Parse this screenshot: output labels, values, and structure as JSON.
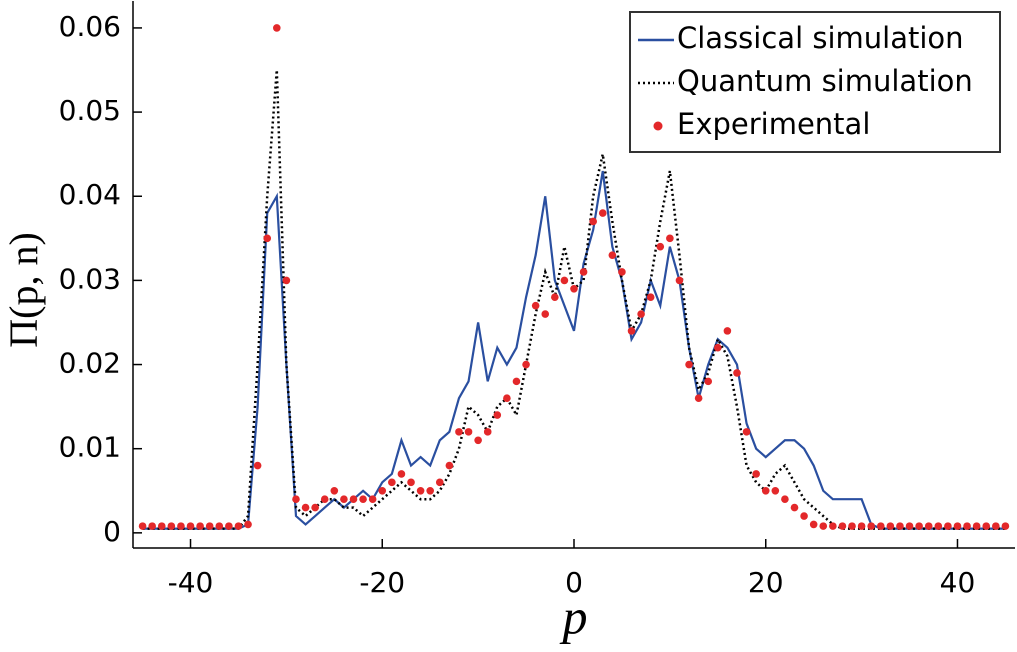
{
  "chart_data": {
    "type": "line",
    "xlabel": "p",
    "ylabel": "Π(p, n)",
    "xlim": [
      -46,
      46
    ],
    "ylim": [
      -0.0018,
      0.0632
    ],
    "xticks": [
      -40,
      -20,
      0,
      20,
      40
    ],
    "yticks": [
      0,
      0.01,
      0.02,
      0.03,
      0.04,
      0.05,
      0.06
    ],
    "legend": "upper right",
    "x": [
      -45,
      -44,
      -43,
      -42,
      -41,
      -40,
      -39,
      -38,
      -37,
      -36,
      -35,
      -34,
      -33,
      -32,
      -31,
      -30,
      -29,
      -28,
      -27,
      -26,
      -25,
      -24,
      -23,
      -22,
      -21,
      -20,
      -19,
      -18,
      -17,
      -16,
      -15,
      -14,
      -13,
      -12,
      -11,
      -10,
      -9,
      -8,
      -7,
      -6,
      -5,
      -4,
      -3,
      -2,
      -1,
      0,
      1,
      2,
      3,
      4,
      5,
      6,
      7,
      8,
      9,
      10,
      11,
      12,
      13,
      14,
      15,
      16,
      17,
      18,
      19,
      20,
      21,
      22,
      23,
      24,
      25,
      26,
      27,
      28,
      29,
      30,
      31,
      32,
      33,
      34,
      35,
      36,
      37,
      38,
      39,
      40,
      41,
      42,
      43,
      44,
      45
    ],
    "series": [
      {
        "name": "Classical simulation",
        "color": "#2a4fa0",
        "style": "solid",
        "values": [
          0.0005,
          0.0005,
          0.0005,
          0.0005,
          0.0005,
          0.0005,
          0.0005,
          0.0005,
          0.0005,
          0.0005,
          0.0005,
          0.001,
          0.015,
          0.038,
          0.04,
          0.02,
          0.002,
          0.001,
          0.002,
          0.003,
          0.004,
          0.003,
          0.004,
          0.005,
          0.004,
          0.006,
          0.007,
          0.011,
          0.008,
          0.009,
          0.008,
          0.011,
          0.012,
          0.016,
          0.018,
          0.025,
          0.018,
          0.022,
          0.02,
          0.022,
          0.028,
          0.033,
          0.04,
          0.03,
          0.027,
          0.024,
          0.032,
          0.036,
          0.043,
          0.034,
          0.03,
          0.023,
          0.025,
          0.03,
          0.027,
          0.034,
          0.03,
          0.022,
          0.016,
          0.02,
          0.023,
          0.022,
          0.02,
          0.013,
          0.01,
          0.009,
          0.01,
          0.011,
          0.011,
          0.01,
          0.008,
          0.005,
          0.004,
          0.004,
          0.004,
          0.004,
          0.001,
          0.0005,
          0.0005,
          0.0005,
          0.0005,
          0.0005,
          0.0005,
          0.0005,
          0.0005,
          0.0005,
          0.0005,
          0.0005,
          0.0005,
          0.0005,
          0.0005
        ]
      },
      {
        "name": "Quantum simulation",
        "color": "#000000",
        "style": "dotted",
        "values": [
          0.0005,
          0.0005,
          0.0005,
          0.0005,
          0.0005,
          0.0005,
          0.0005,
          0.0005,
          0.0005,
          0.0005,
          0.0005,
          0.002,
          0.02,
          0.04,
          0.055,
          0.02,
          0.003,
          0.002,
          0.003,
          0.004,
          0.004,
          0.003,
          0.003,
          0.002,
          0.003,
          0.004,
          0.005,
          0.006,
          0.005,
          0.004,
          0.004,
          0.005,
          0.007,
          0.01,
          0.015,
          0.014,
          0.012,
          0.015,
          0.016,
          0.014,
          0.02,
          0.026,
          0.031,
          0.028,
          0.034,
          0.029,
          0.03,
          0.04,
          0.045,
          0.037,
          0.03,
          0.024,
          0.026,
          0.03,
          0.037,
          0.043,
          0.033,
          0.022,
          0.017,
          0.019,
          0.023,
          0.021,
          0.015,
          0.008,
          0.006,
          0.005,
          0.007,
          0.008,
          0.006,
          0.004,
          0.003,
          0.002,
          0.001,
          0.0005,
          0.0005,
          0.0005,
          0.0005,
          0.0005,
          0.0005,
          0.0005,
          0.0005,
          0.0005,
          0.0005,
          0.0005,
          0.0005,
          0.0005,
          0.0005,
          0.0005,
          0.0005,
          0.0005,
          0.0005
        ]
      },
      {
        "name": "Experimental",
        "color": "#e3282a",
        "style": "marker",
        "values": [
          0.0008,
          0.0008,
          0.0008,
          0.0008,
          0.0008,
          0.0008,
          0.0008,
          0.0008,
          0.0008,
          0.0008,
          0.0008,
          0.001,
          0.008,
          0.035,
          0.06,
          0.03,
          0.004,
          0.003,
          0.003,
          0.004,
          0.005,
          0.004,
          0.004,
          0.004,
          0.004,
          0.005,
          0.006,
          0.007,
          0.006,
          0.005,
          0.005,
          0.006,
          0.008,
          0.012,
          0.012,
          0.011,
          0.012,
          0.014,
          0.016,
          0.018,
          0.02,
          0.027,
          0.026,
          0.028,
          0.03,
          0.029,
          0.031,
          0.037,
          0.038,
          0.033,
          0.031,
          0.024,
          0.026,
          0.028,
          0.034,
          0.035,
          0.03,
          0.02,
          0.016,
          0.018,
          0.022,
          0.024,
          0.019,
          0.012,
          0.007,
          0.005,
          0.005,
          0.004,
          0.003,
          0.002,
          0.001,
          0.0008,
          0.0008,
          0.0008,
          0.0008,
          0.0008,
          0.0008,
          0.0008,
          0.0008,
          0.0008,
          0.0008,
          0.0008,
          0.0008,
          0.0008,
          0.0008,
          0.0008,
          0.0008,
          0.0008,
          0.0008,
          0.0008,
          0.0008
        ]
      }
    ]
  }
}
